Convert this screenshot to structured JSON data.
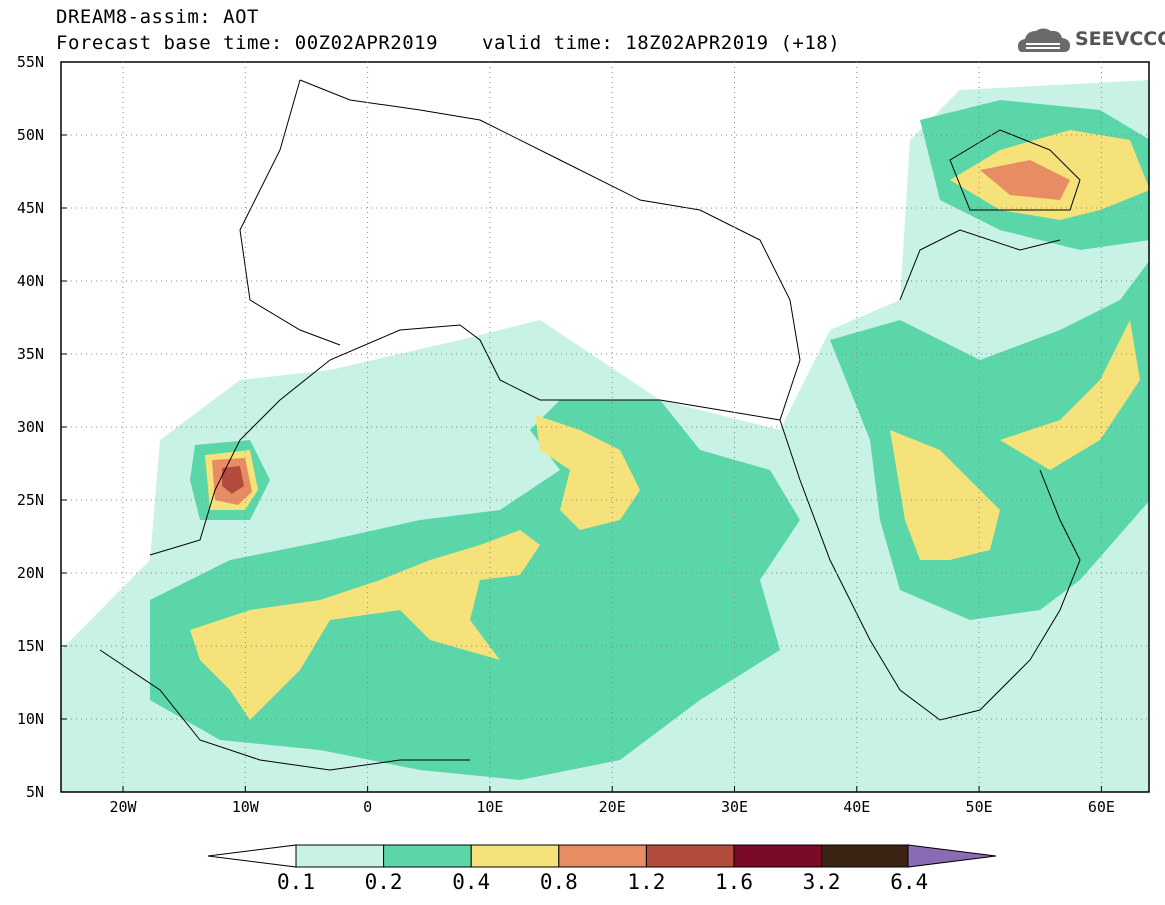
{
  "header": {
    "title_line1": "DREAM8-assim: AOT",
    "title_line2": "Forecast base time: 00Z02APR2019",
    "valid_time": "valid time: 18Z02APR2019 (+18)",
    "logo_text": "SEEVCCC",
    "logo_icon": "cloud-icon"
  },
  "map": {
    "lat_labels": [
      "55N",
      "50N",
      "45N",
      "40N",
      "35N",
      "30N",
      "25N",
      "20N",
      "15N",
      "10N",
      "5N"
    ],
    "lon_labels": [
      "20W",
      "10W",
      "0",
      "10E",
      "20E",
      "30E",
      "40E",
      "50E",
      "60E"
    ],
    "gridlines": "dotted"
  },
  "colorbar": {
    "labels": [
      "0.1",
      "0.2",
      "0.4",
      "0.8",
      "1.2",
      "1.6",
      "3.2",
      "6.4"
    ],
    "colors": [
      "#c8f2e6",
      "#5ad6a8",
      "#f5e27a",
      "#e88c64",
      "#b44c3e",
      "#7a0a26",
      "#3a2312",
      "#8a6cb4"
    ],
    "extend_low_color": "#ffffff"
  }
}
